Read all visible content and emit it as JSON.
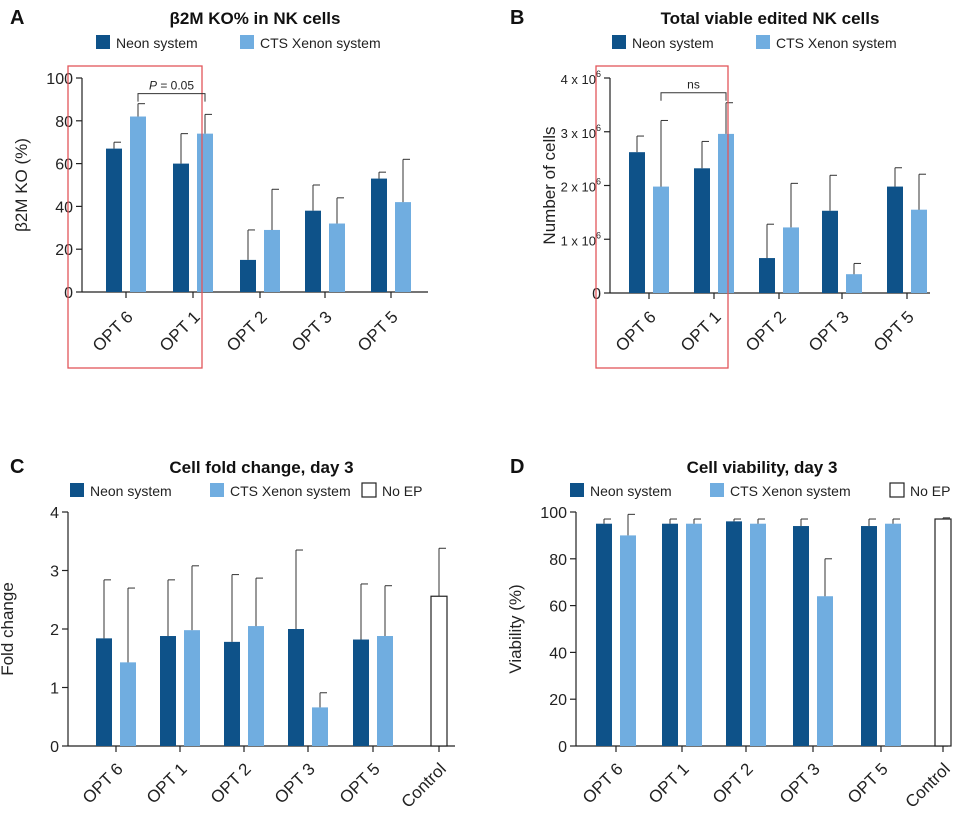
{
  "colors": {
    "neon": "#0e5289",
    "xenon": "#70ade0",
    "noep_fill": "#ffffff",
    "noep_stroke": "#222222",
    "axis": "#222222",
    "highlight": "#e2565a"
  },
  "chart_data": [
    {
      "panel": "A",
      "type": "bar",
      "title": "β2M KO% in NK cells",
      "ylabel": "β2M  KO (%)",
      "ylim": [
        0,
        100
      ],
      "yticks": [
        "0",
        "20",
        "40",
        "60",
        "80",
        "100"
      ],
      "categories": [
        "OPT 6",
        "OPT 1",
        "OPT 2",
        "OPT 3",
        "OPT 5"
      ],
      "legend": [
        "Neon system",
        "CTS Xenon system"
      ],
      "series": [
        {
          "name": "Neon system",
          "values": [
            67,
            60,
            15,
            38,
            53
          ],
          "errors": [
            3,
            14,
            14,
            12,
            3
          ]
        },
        {
          "name": "CTS Xenon system",
          "values": [
            82,
            74,
            29,
            32,
            42
          ],
          "errors": [
            6,
            9,
            19,
            12,
            20
          ]
        }
      ],
      "annotation": {
        "text_italic": "P",
        "text_rest": " = 0.05",
        "between": [
          "OPT 6",
          "OPT 1"
        ],
        "series": "CTS Xenon system"
      },
      "highlight_categories": [
        "OPT 6",
        "OPT 1"
      ]
    },
    {
      "panel": "B",
      "type": "bar",
      "title": "Total viable edited NK cells",
      "ylabel": "Number of cells",
      "ylim": [
        0,
        4
      ],
      "yticks": [
        "0",
        "1 x 10",
        "2 x 10",
        "3 x 10",
        "4 x 10"
      ],
      "ytick_exponent": "6",
      "categories": [
        "OPT 6",
        "OPT 1",
        "OPT 2",
        "OPT 3",
        "OPT 5"
      ],
      "legend": [
        "Neon system",
        "CTS Xenon system"
      ],
      "series": [
        {
          "name": "Neon system",
          "values": [
            2.62,
            2.32,
            0.65,
            1.53,
            1.98
          ],
          "errors": [
            0.3,
            0.5,
            0.63,
            0.66,
            0.35
          ]
        },
        {
          "name": "CTS Xenon system",
          "values": [
            1.98,
            2.96,
            1.22,
            0.35,
            1.55
          ],
          "errors": [
            1.23,
            0.58,
            0.82,
            0.2,
            0.66
          ]
        }
      ],
      "annotation": {
        "text_italic": "",
        "text_rest": "ns",
        "between": [
          "OPT 6",
          "OPT 1"
        ],
        "series": "CTS Xenon system"
      },
      "highlight_categories": [
        "OPT 6",
        "OPT 1"
      ]
    },
    {
      "panel": "C",
      "type": "bar",
      "title": "Cell fold change, day 3",
      "ylabel": "Fold change",
      "ylim": [
        0,
        4
      ],
      "yticks": [
        "0",
        "1",
        "2",
        "3",
        "4"
      ],
      "categories": [
        "OPT 6",
        "OPT 1",
        "OPT 2",
        "OPT 3",
        "OPT 5",
        "Control"
      ],
      "legend": [
        "Neon system",
        "CTS Xenon system",
        "No EP"
      ],
      "series": [
        {
          "name": "Neon system",
          "values": [
            1.84,
            1.88,
            1.78,
            2.0,
            1.82,
            null
          ],
          "errors": [
            1.0,
            0.96,
            1.15,
            1.35,
            0.95,
            null
          ]
        },
        {
          "name": "CTS Xenon system",
          "values": [
            1.43,
            1.98,
            2.05,
            0.66,
            1.88,
            null
          ],
          "errors": [
            1.27,
            1.1,
            0.82,
            0.25,
            0.86,
            null
          ]
        },
        {
          "name": "No EP",
          "values": [
            null,
            null,
            null,
            null,
            null,
            2.56
          ],
          "errors": [
            null,
            null,
            null,
            null,
            null,
            0.82
          ]
        }
      ]
    },
    {
      "panel": "D",
      "type": "bar",
      "title": "Cell viability, day 3",
      "ylabel": "Viability (%)",
      "ylim": [
        0,
        100
      ],
      "yticks": [
        "0",
        "20",
        "40",
        "60",
        "80",
        "100"
      ],
      "categories": [
        "OPT 6",
        "OPT 1",
        "OPT 2",
        "OPT 3",
        "OPT 5",
        "Control"
      ],
      "legend": [
        "Neon system",
        "CTS Xenon system",
        "No EP"
      ],
      "series": [
        {
          "name": "Neon system",
          "values": [
            95,
            95,
            96,
            94,
            94,
            null
          ],
          "errors": [
            2,
            2,
            1,
            3,
            3,
            null
          ]
        },
        {
          "name": "CTS Xenon system",
          "values": [
            90,
            95,
            95,
            64,
            95,
            null
          ],
          "errors": [
            9,
            2,
            2,
            16,
            2,
            null
          ]
        },
        {
          "name": "No EP",
          "values": [
            null,
            null,
            null,
            null,
            null,
            97
          ],
          "errors": [
            null,
            null,
            null,
            null,
            null,
            0.5
          ]
        }
      ]
    }
  ]
}
